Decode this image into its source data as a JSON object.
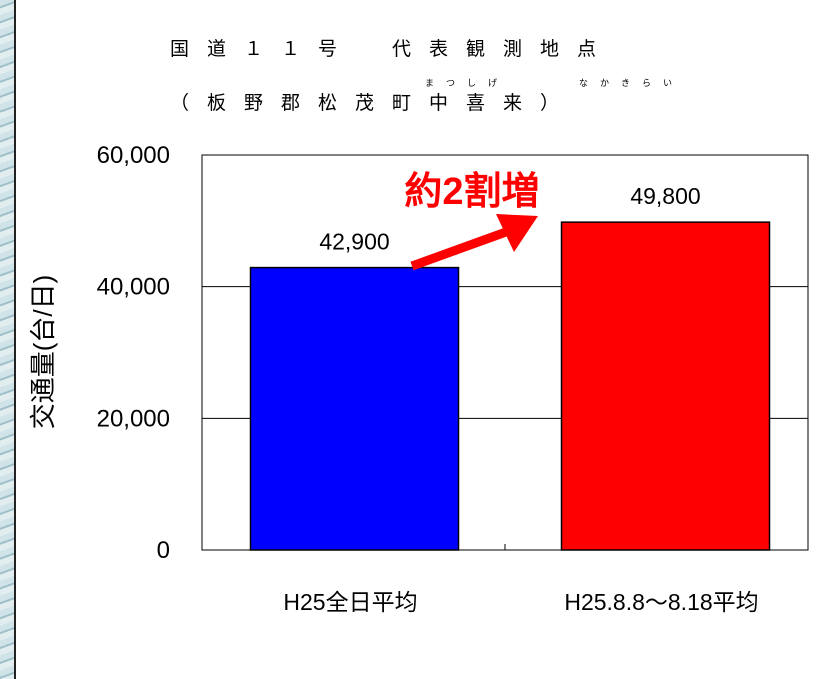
{
  "title": {
    "line1": "国道１１号　代表観測地点",
    "line2": "（板野郡松茂町中喜来）",
    "ruby_matsushige": "まつしげ",
    "ruby_nakakirai": "なかきらい"
  },
  "chart_data": {
    "type": "bar",
    "categories": [
      "H25全日平均",
      "H25.8.8～8.18平均"
    ],
    "values": [
      42900,
      49800
    ],
    "value_labels": [
      "42,900",
      "49,800"
    ],
    "colors": [
      "#0000ff",
      "#ff0000"
    ],
    "ylabel": "交通量(台/日)",
    "ylim": [
      0,
      60000
    ],
    "yticks": [
      0,
      20000,
      40000,
      60000
    ],
    "ytick_labels": [
      "0",
      "20,000",
      "40,000",
      "60,000"
    ],
    "grid": true,
    "annotation": "約2割増",
    "annotation_color": "#ff0000"
  }
}
